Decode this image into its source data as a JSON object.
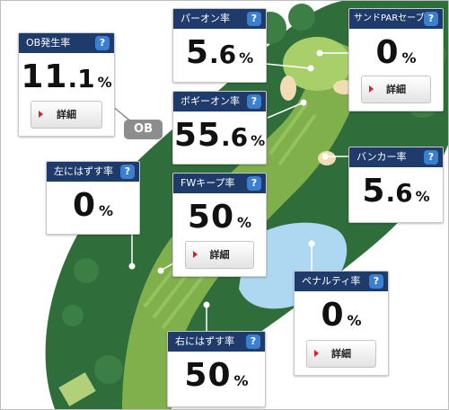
{
  "colors": {
    "header": "#1f3b6b",
    "help": "#3b7fd0",
    "rough": "#2f6e3b",
    "fairway": "#7fb04c",
    "green": "#a9cf6a",
    "bunker": "#f1dcb4",
    "water": "#aed8f2",
    "ob_badge": "#8d8d8d",
    "button_arrow": "#d1242a"
  },
  "icons": {
    "help": "?"
  },
  "ob_badge": "OB",
  "cards": {
    "ob": {
      "title": "OB発生率",
      "int": "11",
      "dec": ".1",
      "pct": "%",
      "button": "詳細"
    },
    "par_on": {
      "title": "パーオン率",
      "int": "5",
      "dec": ".6",
      "pct": "%"
    },
    "sand_save": {
      "title": "サンドPARセーブ率",
      "int": "0",
      "dec": "",
      "pct": "%",
      "button": "詳細"
    },
    "bogey_on": {
      "title": "ボギーオン率",
      "int": "55",
      "dec": ".6",
      "pct": "%"
    },
    "bunker": {
      "title": "バンカー率",
      "int": "5",
      "dec": ".6",
      "pct": "%"
    },
    "left_miss": {
      "title": "左にはずす率",
      "int": "0",
      "dec": "",
      "pct": "%"
    },
    "fw_keep": {
      "title": "FWキープ率",
      "int": "50",
      "dec": "",
      "pct": "%",
      "button": "詳細"
    },
    "penalty": {
      "title": "ペナルティ率",
      "int": "0",
      "dec": "",
      "pct": "%",
      "button": "詳細"
    },
    "right_miss": {
      "title": "右にはずす率",
      "int": "50",
      "dec": "",
      "pct": "%"
    }
  }
}
